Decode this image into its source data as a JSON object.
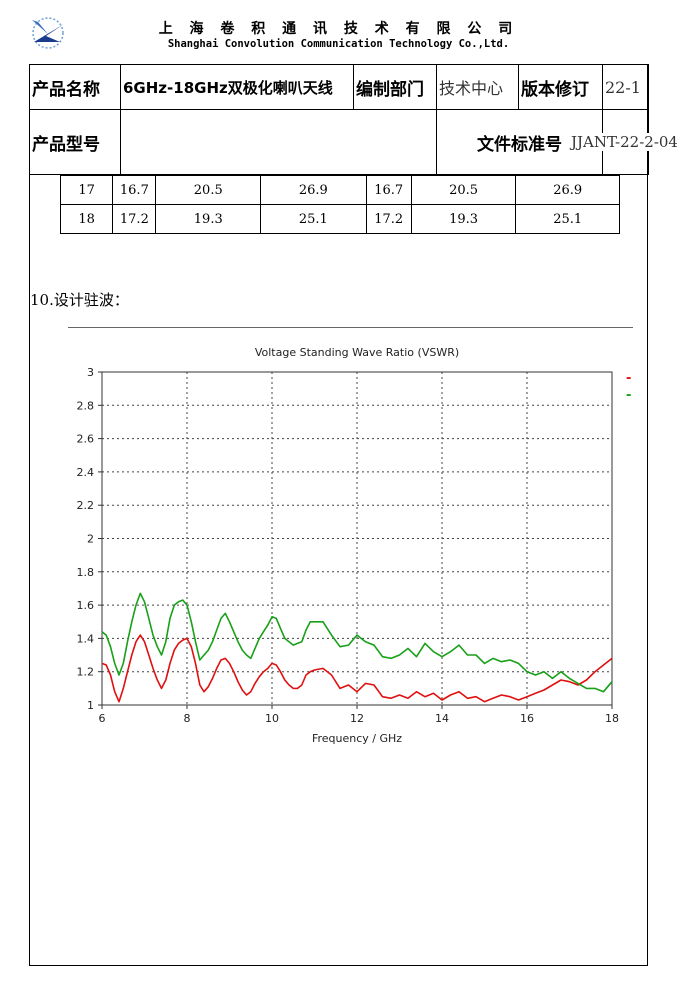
{
  "letterhead": {
    "company_cn": "上 海 卷 积 通 讯 技 术 有 限 公 司",
    "company_en": "Shanghai Convolution Communication Technology Co.,Ltd."
  },
  "header": {
    "product_name_label": "产品名称",
    "product_name_value": "6GHz-18GHz双极化喇叭天线",
    "department_label": "编制部门",
    "department_value": "技术中心",
    "revision_label": "版本修订",
    "revision_value": "22-1",
    "model_label": "产品型号",
    "model_value": "",
    "doc_number_label": "文件标准号",
    "doc_number_value": "JJANT-22-2-04"
  },
  "gain_table": {
    "rows": [
      [
        "17",
        "16.7",
        "20.5",
        "26.9",
        "16.7",
        "20.5",
        "26.9"
      ],
      [
        "18",
        "17.2",
        "19.3",
        "25.1",
        "17.2",
        "19.3",
        "25.1"
      ]
    ]
  },
  "section_title": "10.设计驻波：",
  "colors": {
    "series_red": "#e01010",
    "series_green": "#18a018"
  },
  "chart_data": {
    "type": "line",
    "title": "Voltage Standing Wave Ratio (VSWR)",
    "xlabel": "Frequency / GHz",
    "ylabel": "",
    "xlim": [
      6,
      18
    ],
    "ylim": [
      1,
      3
    ],
    "xticks": [
      "6",
      "8",
      "10",
      "12",
      "14",
      "16",
      "18"
    ],
    "yticks": [
      "1",
      "1.2",
      "1.4",
      "1.6",
      "1.8",
      "2",
      "2.2",
      "2.4",
      "2.6",
      "2.8",
      "3"
    ],
    "grid": true,
    "legend": "top-right",
    "series": [
      {
        "color": "#e01010",
        "legend_mark": "-",
        "x": [
          6.0,
          6.1,
          6.2,
          6.3,
          6.4,
          6.5,
          6.6,
          6.7,
          6.8,
          6.9,
          7.0,
          7.1,
          7.2,
          7.3,
          7.4,
          7.5,
          7.6,
          7.7,
          7.8,
          7.9,
          8.0,
          8.1,
          8.2,
          8.3,
          8.4,
          8.5,
          8.6,
          8.7,
          8.8,
          8.9,
          9.0,
          9.1,
          9.2,
          9.3,
          9.4,
          9.5,
          9.6,
          9.7,
          9.8,
          9.9,
          10.0,
          10.1,
          10.2,
          10.3,
          10.4,
          10.5,
          10.6,
          10.7,
          10.8,
          10.9,
          11.0,
          11.2,
          11.4,
          11.6,
          11.8,
          12.0,
          12.2,
          12.4,
          12.6,
          12.8,
          13.0,
          13.2,
          13.4,
          13.6,
          13.8,
          14.0,
          14.2,
          14.4,
          14.6,
          14.8,
          15.0,
          15.2,
          15.4,
          15.6,
          15.8,
          16.0,
          16.2,
          16.4,
          16.6,
          16.8,
          17.0,
          17.2,
          17.4,
          17.6,
          17.8,
          18.0
        ],
        "y": [
          1.25,
          1.24,
          1.18,
          1.08,
          1.02,
          1.1,
          1.2,
          1.3,
          1.38,
          1.42,
          1.38,
          1.3,
          1.22,
          1.15,
          1.1,
          1.15,
          1.25,
          1.33,
          1.37,
          1.39,
          1.4,
          1.35,
          1.25,
          1.12,
          1.08,
          1.11,
          1.16,
          1.22,
          1.27,
          1.28,
          1.25,
          1.2,
          1.14,
          1.09,
          1.06,
          1.08,
          1.13,
          1.17,
          1.2,
          1.22,
          1.25,
          1.24,
          1.2,
          1.15,
          1.12,
          1.1,
          1.1,
          1.12,
          1.18,
          1.2,
          1.21,
          1.22,
          1.18,
          1.1,
          1.12,
          1.08,
          1.13,
          1.12,
          1.05,
          1.04,
          1.06,
          1.04,
          1.08,
          1.05,
          1.07,
          1.03,
          1.06,
          1.08,
          1.04,
          1.05,
          1.02,
          1.04,
          1.06,
          1.05,
          1.03,
          1.05,
          1.07,
          1.09,
          1.12,
          1.15,
          1.14,
          1.12,
          1.15,
          1.2,
          1.24,
          1.28
        ]
      },
      {
        "color": "#18a018",
        "legend_mark": "-",
        "x": [
          6.0,
          6.1,
          6.2,
          6.3,
          6.4,
          6.5,
          6.6,
          6.7,
          6.8,
          6.9,
          7.0,
          7.1,
          7.2,
          7.3,
          7.4,
          7.5,
          7.6,
          7.7,
          7.8,
          7.9,
          8.0,
          8.1,
          8.2,
          8.3,
          8.4,
          8.5,
          8.6,
          8.7,
          8.8,
          8.9,
          9.0,
          9.1,
          9.2,
          9.3,
          9.4,
          9.5,
          9.6,
          9.7,
          9.8,
          9.9,
          10.0,
          10.1,
          10.2,
          10.3,
          10.4,
          10.5,
          10.6,
          10.7,
          10.8,
          10.9,
          11.0,
          11.2,
          11.4,
          11.6,
          11.8,
          12.0,
          12.2,
          12.4,
          12.6,
          12.8,
          13.0,
          13.2,
          13.4,
          13.6,
          13.8,
          14.0,
          14.2,
          14.4,
          14.6,
          14.8,
          15.0,
          15.2,
          15.4,
          15.6,
          15.8,
          16.0,
          16.2,
          16.4,
          16.6,
          16.8,
          17.0,
          17.2,
          17.4,
          17.6,
          17.8,
          18.0
        ],
        "y": [
          1.44,
          1.42,
          1.35,
          1.25,
          1.18,
          1.25,
          1.38,
          1.5,
          1.6,
          1.67,
          1.62,
          1.52,
          1.42,
          1.35,
          1.3,
          1.38,
          1.52,
          1.6,
          1.62,
          1.63,
          1.6,
          1.5,
          1.38,
          1.27,
          1.3,
          1.33,
          1.38,
          1.45,
          1.52,
          1.55,
          1.5,
          1.44,
          1.38,
          1.33,
          1.3,
          1.28,
          1.34,
          1.4,
          1.44,
          1.48,
          1.53,
          1.52,
          1.46,
          1.4,
          1.38,
          1.36,
          1.37,
          1.38,
          1.45,
          1.5,
          1.5,
          1.5,
          1.42,
          1.35,
          1.36,
          1.42,
          1.38,
          1.36,
          1.29,
          1.28,
          1.3,
          1.34,
          1.29,
          1.37,
          1.32,
          1.29,
          1.32,
          1.36,
          1.3,
          1.3,
          1.25,
          1.28,
          1.26,
          1.27,
          1.25,
          1.2,
          1.18,
          1.2,
          1.16,
          1.2,
          1.16,
          1.13,
          1.1,
          1.1,
          1.08,
          1.14
        ]
      }
    ]
  }
}
